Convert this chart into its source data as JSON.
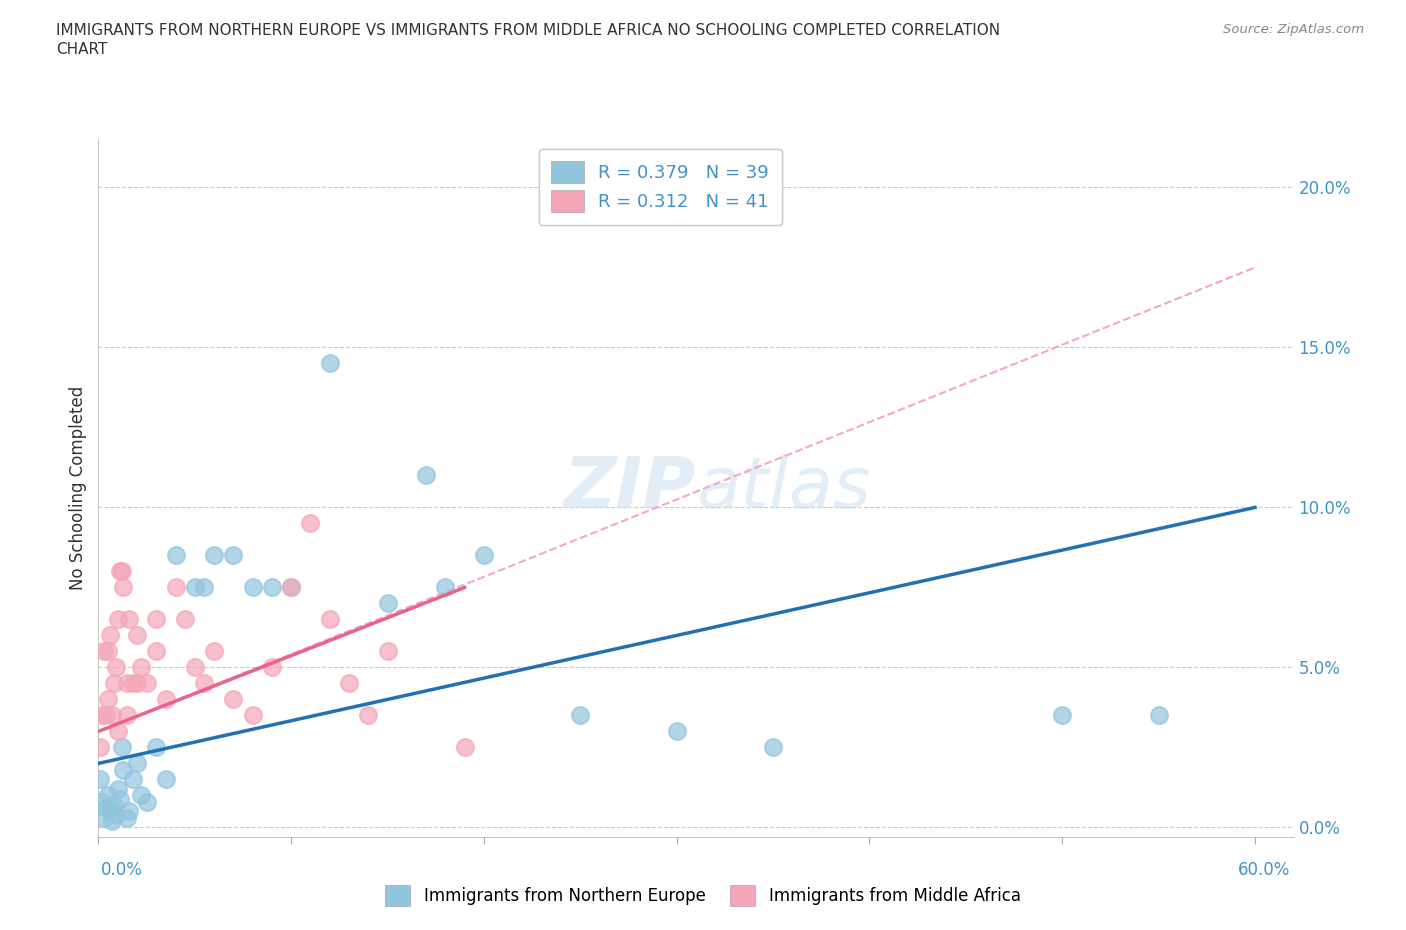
{
  "title_line1": "IMMIGRANTS FROM NORTHERN EUROPE VS IMMIGRANTS FROM MIDDLE AFRICA NO SCHOOLING COMPLETED CORRELATION",
  "title_line2": "CHART",
  "source": "Source: ZipAtlas.com",
  "ylabel": "No Schooling Completed",
  "ytick_vals": [
    0.0,
    5.0,
    10.0,
    15.0,
    20.0
  ],
  "ytick_labels": [
    "0.0%",
    "5.0%",
    "10.0%",
    "15.0%",
    "20.0%"
  ],
  "xtick_vals": [
    0,
    10,
    20,
    30,
    40,
    50,
    60
  ],
  "xlim": [
    0,
    62
  ],
  "ylim": [
    -0.3,
    21.5
  ],
  "R_blue": 0.379,
  "N_blue": 39,
  "R_pink": 0.312,
  "N_pink": 41,
  "blue_color": "#92C5DE",
  "pink_color": "#F4A6B8",
  "blue_line_color": "#2171B5",
  "pink_line_color": "#E8648A",
  "pink_dashed_color": "#F4A6C8",
  "grid_color": "#CCCCCC",
  "tick_color": "#4393C3",
  "legend_label_blue": "Immigrants from Northern Europe",
  "legend_label_pink": "Immigrants from Middle Africa",
  "watermark": "ZIPatlas",
  "blue_scatter_x": [
    0.1,
    0.2,
    0.3,
    0.4,
    0.5,
    0.6,
    0.7,
    0.8,
    0.9,
    1.0,
    1.1,
    1.2,
    1.3,
    1.5,
    1.6,
    1.8,
    2.0,
    2.2,
    2.5,
    3.0,
    3.5,
    4.0,
    5.0,
    5.5,
    6.0,
    7.0,
    8.0,
    9.0,
    10.0,
    12.0,
    15.0,
    17.0,
    18.0,
    20.0,
    25.0,
    30.0,
    35.0,
    50.0,
    55.0
  ],
  "blue_scatter_y": [
    1.5,
    0.8,
    0.3,
    0.6,
    1.0,
    0.5,
    0.2,
    0.7,
    0.4,
    1.2,
    0.9,
    2.5,
    1.8,
    0.3,
    0.5,
    1.5,
    2.0,
    1.0,
    0.8,
    2.5,
    1.5,
    8.5,
    7.5,
    7.5,
    8.5,
    8.5,
    7.5,
    7.5,
    7.5,
    14.5,
    7.0,
    11.0,
    7.5,
    8.5,
    3.5,
    3.0,
    2.5,
    3.5,
    3.5
  ],
  "pink_scatter_x": [
    0.1,
    0.2,
    0.3,
    0.4,
    0.5,
    0.5,
    0.6,
    0.7,
    0.8,
    0.9,
    1.0,
    1.0,
    1.1,
    1.2,
    1.3,
    1.5,
    1.5,
    1.6,
    1.8,
    2.0,
    2.0,
    2.2,
    2.5,
    3.0,
    3.0,
    3.5,
    4.0,
    4.5,
    5.0,
    5.5,
    6.0,
    7.0,
    8.0,
    9.0,
    10.0,
    11.0,
    12.0,
    13.0,
    14.0,
    15.0,
    19.0
  ],
  "pink_scatter_y": [
    2.5,
    3.5,
    5.5,
    3.5,
    5.5,
    4.0,
    6.0,
    3.5,
    4.5,
    5.0,
    3.0,
    6.5,
    8.0,
    8.0,
    7.5,
    4.5,
    3.5,
    6.5,
    4.5,
    6.0,
    4.5,
    5.0,
    4.5,
    6.5,
    5.5,
    4.0,
    7.5,
    6.5,
    5.0,
    4.5,
    5.5,
    4.0,
    3.5,
    5.0,
    7.5,
    9.5,
    6.5,
    4.5,
    3.5,
    5.5,
    2.5
  ],
  "blue_line_x0": 0.0,
  "blue_line_y0": 2.0,
  "blue_line_x1": 60.0,
  "blue_line_y1": 10.0,
  "pink_line_x0": 0.0,
  "pink_line_y0": 3.0,
  "pink_line_x1": 19.0,
  "pink_line_y1": 7.5,
  "pink_dash_x0": 0.0,
  "pink_dash_y0": 3.0,
  "pink_dash_x1": 60.0,
  "pink_dash_y1": 17.5
}
